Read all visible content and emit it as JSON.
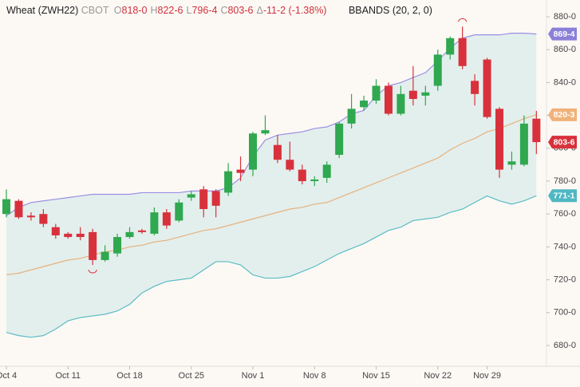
{
  "chart_data": {
    "type": "candlestick",
    "title": "Wheat (ZWH22)",
    "exchange": "CBOT",
    "stats": [
      {
        "label": "O",
        "value": "818-0"
      },
      {
        "label": "H",
        "value": "822-6"
      },
      {
        "label": "L",
        "value": "796-4"
      },
      {
        "label": "C",
        "value": "803-6"
      },
      {
        "label": "Δ",
        "value": "-11-2 (-1.38%)"
      }
    ],
    "indicator": "BBANDS (20, 2, 0)",
    "categories": [
      "Oct 4",
      null,
      null,
      null,
      null,
      "Oct 11",
      null,
      null,
      null,
      null,
      "Oct 18",
      null,
      null,
      null,
      null,
      "Oct 25",
      null,
      null,
      null,
      null,
      "Nov 1",
      null,
      null,
      null,
      null,
      "Nov 8",
      null,
      null,
      null,
      null,
      "Nov 15",
      null,
      null,
      null,
      null,
      "Nov 22",
      null,
      null,
      null,
      "Nov 29",
      null,
      null,
      null,
      null
    ],
    "open": [
      760,
      768,
      759,
      760,
      752,
      748,
      748,
      749,
      732,
      736,
      746,
      750,
      748,
      761,
      756,
      770,
      775,
      774,
      773,
      787,
      787,
      809,
      802,
      793,
      787,
      780,
      782,
      796,
      815,
      825,
      829,
      838,
      821,
      835,
      832,
      838,
      857,
      867,
      841,
      854,
      824,
      790,
      790,
      818
    ],
    "high": [
      775,
      769,
      761,
      763,
      754,
      749,
      752,
      751,
      741,
      748,
      752,
      751,
      764,
      763,
      769,
      774,
      777,
      775,
      791,
      795,
      810,
      820,
      808,
      804,
      790,
      783,
      792,
      816,
      833,
      832,
      842,
      840,
      838,
      850,
      838,
      860,
      868,
      874,
      845,
      855,
      825,
      798,
      820,
      822.75
    ],
    "low": [
      758,
      757,
      756,
      752,
      745,
      745,
      744,
      729,
      731,
      734,
      745,
      748,
      747,
      751,
      755,
      768,
      758,
      758,
      771,
      780,
      783,
      808,
      791,
      786,
      778,
      777,
      779,
      794,
      812,
      823,
      827,
      820,
      820,
      826,
      826,
      835,
      854,
      848,
      826,
      818,
      782,
      787,
      789,
      796.5
    ],
    "close": [
      769,
      758,
      758,
      754,
      747,
      746,
      746,
      732,
      737,
      746,
      749,
      749,
      761,
      753,
      767,
      772,
      763,
      765,
      786,
      785,
      809,
      811,
      793,
      787,
      780,
      781,
      790,
      815,
      824,
      829,
      838,
      821,
      833,
      830,
      834,
      857,
      867,
      850,
      833,
      819,
      787,
      792,
      815,
      803.75
    ],
    "up_color": "#2fa84f",
    "down_color": "#d8313c",
    "bands": [
      {
        "color": "#9a8fe2",
        "values": [
          759,
          764,
          767,
          768,
          769,
          770,
          771,
          772,
          772,
          772,
          772,
          773,
          773,
          773,
          773,
          774,
          774,
          774,
          776,
          782,
          795,
          805,
          808,
          809,
          810,
          812,
          813,
          816,
          821,
          823,
          832,
          838,
          840,
          843,
          846,
          853,
          861,
          867,
          869,
          869,
          869,
          870,
          870,
          869.5
        ]
      },
      {
        "color": "#e6b27e",
        "values": [
          723,
          724,
          726,
          728,
          730,
          732,
          733,
          735,
          737,
          738,
          740,
          741,
          743,
          744,
          746,
          748,
          750,
          751,
          753,
          755,
          757,
          759,
          761,
          763,
          764,
          766,
          767,
          770,
          773,
          776,
          779,
          782,
          785,
          788,
          791,
          794,
          799,
          803,
          806,
          810,
          812,
          815,
          818,
          820.375
        ]
      },
      {
        "color": "#5bbcc4",
        "values": [
          688,
          686,
          685,
          686,
          690,
          695,
          697,
          698,
          699,
          701,
          705,
          712,
          716,
          719,
          720,
          721,
          726,
          731,
          731,
          729,
          723,
          721,
          721,
          722,
          725,
          728,
          732,
          736,
          739,
          742,
          746,
          750,
          752,
          756,
          757,
          758,
          761,
          763,
          767,
          771,
          768,
          766,
          768,
          771.125
        ]
      }
    ],
    "band_fill": "#e3efed",
    "badges": [
      {
        "value": 869.5,
        "label": "869-4",
        "color": "#8b80d8"
      },
      {
        "value": 820.375,
        "label": "820-3",
        "color": "#f0b27a"
      },
      {
        "value": 803.75,
        "label": "803-6",
        "color": "#d8313c"
      },
      {
        "value": 771.125,
        "label": "771-1",
        "color": "#4fb8c2"
      }
    ],
    "ylim": [
      675,
      885
    ],
    "yticks": [
      {
        "value": 680,
        "label": "680-0"
      },
      {
        "value": 700,
        "label": "700-0"
      },
      {
        "value": 720,
        "label": "720-0"
      },
      {
        "value": 740,
        "label": "740-0"
      },
      {
        "value": 760,
        "label": "760-0"
      },
      {
        "value": 780,
        "label": "780-0"
      },
      {
        "value": 800,
        "label": "800-0"
      },
      {
        "value": 820,
        "label": "820-0"
      },
      {
        "value": 840,
        "label": "840-0"
      },
      {
        "value": 860,
        "label": "860-0"
      },
      {
        "value": 880,
        "label": "880-0"
      }
    ]
  }
}
